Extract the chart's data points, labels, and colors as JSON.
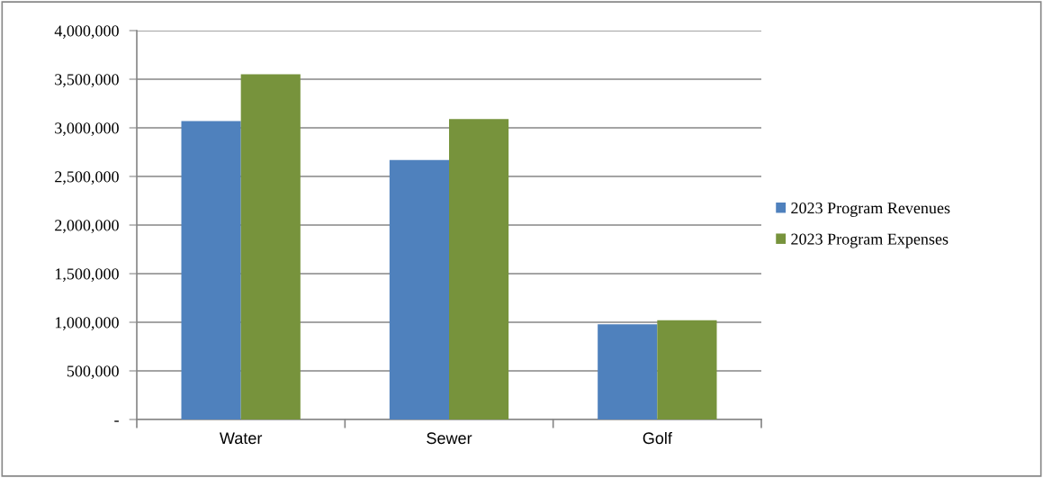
{
  "chart_data": {
    "type": "bar",
    "categories": [
      "Water",
      "Sewer",
      "Golf"
    ],
    "series": [
      {
        "name": "2023 Program Revenues",
        "color": "#4f81bd",
        "values": [
          3070000,
          2670000,
          980000
        ]
      },
      {
        "name": "2023 Program Expenses",
        "color": "#77933c",
        "values": [
          3550000,
          3090000,
          1020000
        ]
      }
    ],
    "ylim": [
      0,
      4000000
    ],
    "yticks": [
      {
        "value": 0,
        "label": "-"
      },
      {
        "value": 500000,
        "label": "500,000"
      },
      {
        "value": 1000000,
        "label": "1,000,000"
      },
      {
        "value": 1500000,
        "label": "1,500,000"
      },
      {
        "value": 2000000,
        "label": "2,000,000"
      },
      {
        "value": 2500000,
        "label": "2,500,000"
      },
      {
        "value": 3000000,
        "label": "3,000,000"
      },
      {
        "value": 3500000,
        "label": "3,500,000"
      },
      {
        "value": 4000000,
        "label": "4,000,000"
      }
    ],
    "grid": "y",
    "legend": "right"
  }
}
